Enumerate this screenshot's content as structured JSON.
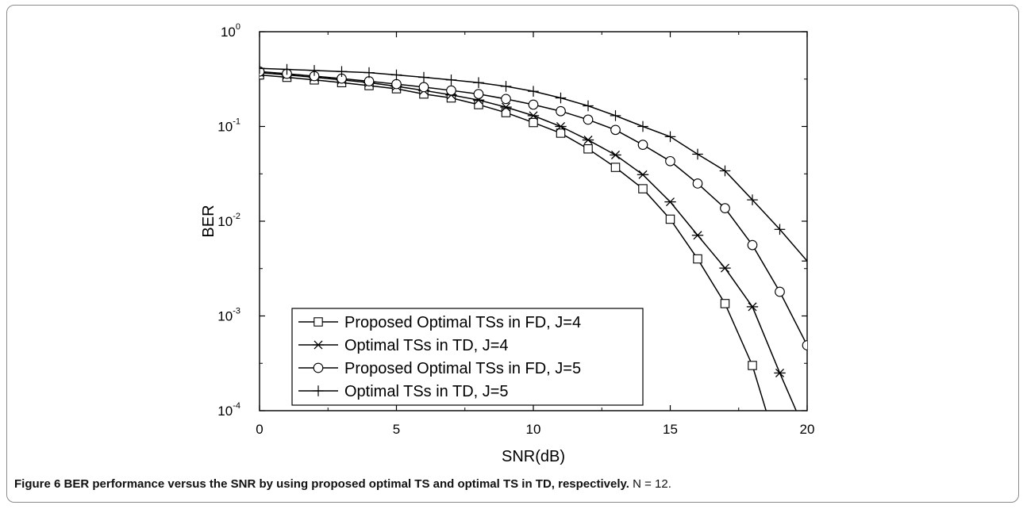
{
  "caption": {
    "label": "Figure 6",
    "title": "BER performance versus the SNR by using proposed optimal TS and optimal TS in TD, respectively.",
    "note": "N = 12."
  },
  "chart_data": {
    "type": "line",
    "xlabel": "SNR(dB)",
    "ylabel": "BER",
    "xlim": [
      0,
      20
    ],
    "ylim": [
      0.0001,
      1
    ],
    "yscale": "log",
    "x_ticks": [
      0,
      5,
      10,
      15,
      20
    ],
    "y_ticks": [
      {
        "base": "10",
        "exp": "0",
        "value": 1
      },
      {
        "base": "10",
        "exp": "-1",
        "value": 0.1
      },
      {
        "base": "10",
        "exp": "-2",
        "value": 0.01
      },
      {
        "base": "10",
        "exp": "-3",
        "value": 0.001
      },
      {
        "base": "10",
        "exp": "-4",
        "value": 0.0001
      }
    ],
    "grid": false,
    "legend_position": "bottom-left",
    "line_color": "#000000",
    "series": [
      {
        "name": "Proposed Optimal TSs in FD, J=4",
        "marker": "square",
        "x": [
          0,
          1,
          2,
          3,
          4,
          5,
          6,
          7,
          8,
          9,
          10,
          11,
          12,
          13,
          14,
          15,
          16,
          17,
          18,
          18.5
        ],
        "y": [
          0.35,
          0.33,
          0.31,
          0.29,
          0.27,
          0.25,
          0.22,
          0.2,
          0.17,
          0.14,
          0.11,
          0.085,
          0.058,
          0.037,
          0.022,
          0.0105,
          0.004,
          0.00135,
          0.0003,
          0.0001
        ]
      },
      {
        "name": "Optimal TSs in TD, J=4",
        "marker": "asterisk",
        "x": [
          0,
          1,
          2,
          3,
          4,
          5,
          6,
          7,
          8,
          9,
          10,
          11,
          12,
          13,
          14,
          15,
          16,
          17,
          18,
          19,
          19.6
        ],
        "y": [
          0.37,
          0.35,
          0.33,
          0.31,
          0.29,
          0.265,
          0.24,
          0.215,
          0.19,
          0.16,
          0.13,
          0.1,
          0.072,
          0.05,
          0.031,
          0.016,
          0.0071,
          0.0032,
          0.00125,
          0.00025,
          0.0001
        ]
      },
      {
        "name": "Proposed Optimal TSs in FD, J=5",
        "marker": "circle",
        "x": [
          0,
          1,
          2,
          3,
          4,
          5,
          6,
          7,
          8,
          9,
          10,
          11,
          12,
          13,
          14,
          15,
          16,
          17,
          18,
          19,
          20
        ],
        "y": [
          0.38,
          0.36,
          0.34,
          0.32,
          0.3,
          0.28,
          0.26,
          0.24,
          0.22,
          0.195,
          0.17,
          0.145,
          0.118,
          0.092,
          0.064,
          0.043,
          0.025,
          0.0137,
          0.0056,
          0.0018,
          0.00049
        ]
      },
      {
        "name": "Optimal TSs in TD, J=5",
        "marker": "plus",
        "x": [
          0,
          1,
          2,
          3,
          4,
          5,
          6,
          7,
          8,
          9,
          10,
          11,
          12,
          13,
          14,
          15,
          16,
          17,
          18,
          19,
          20
        ],
        "y": [
          0.41,
          0.4,
          0.39,
          0.38,
          0.37,
          0.35,
          0.33,
          0.31,
          0.29,
          0.265,
          0.235,
          0.2,
          0.165,
          0.13,
          0.1,
          0.078,
          0.051,
          0.034,
          0.0168,
          0.0082,
          0.0038
        ]
      }
    ]
  }
}
